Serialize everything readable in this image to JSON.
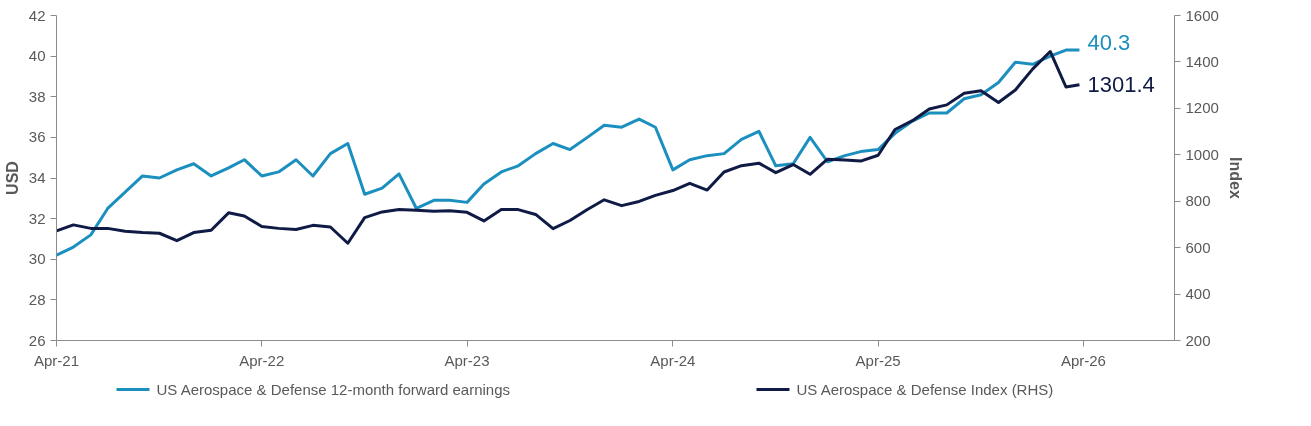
{
  "chart_data": {
    "type": "line",
    "xlabel": null,
    "ylabel": "USD",
    "y2label": "Index",
    "x": [
      "2021-04-01",
      "2021-05-01",
      "2021-06-01",
      "2021-07-01",
      "2021-08-01",
      "2021-09-01",
      "2021-10-01",
      "2021-11-01",
      "2021-12-01",
      "2022-01-01",
      "2022-02-01",
      "2022-03-01",
      "2022-04-01",
      "2022-05-01",
      "2022-06-01",
      "2022-07-01",
      "2022-08-01",
      "2022-09-01",
      "2022-10-01",
      "2022-11-01",
      "2022-12-01",
      "2023-01-01",
      "2023-02-01",
      "2023-03-01",
      "2023-04-01",
      "2023-05-01",
      "2023-06-01",
      "2023-07-01",
      "2023-08-01",
      "2023-09-01",
      "2023-10-01",
      "2023-11-01",
      "2023-12-01",
      "2024-01-01",
      "2024-02-01",
      "2024-03-01",
      "2024-04-01",
      "2024-05-01",
      "2024-06-01",
      "2024-07-01",
      "2024-08-01",
      "2024-09-01",
      "2024-10-01",
      "2024-11-01",
      "2024-12-01",
      "2025-01-01",
      "2025-02-01",
      "2025-03-01",
      "2025-04-01",
      "2025-05-01",
      "2025-06-01",
      "2025-07-01",
      "2025-08-01",
      "2025-09-01",
      "2025-10-01",
      "2025-11-01",
      "2025-12-01",
      "2026-01-01",
      "2026-02-01",
      "2026-03-01",
      "2026-03-25"
    ],
    "series": [
      {
        "name": "US Aerospace & Defense 12-month forward earnings",
        "color": "#1b8fbe",
        "values": [
          30.2,
          30.6,
          31.2,
          32.5,
          33.3,
          34.1,
          34.0,
          34.4,
          34.7,
          34.1,
          34.5,
          34.9,
          34.1,
          34.3,
          34.9,
          34.1,
          35.2,
          35.7,
          33.2,
          33.5,
          34.2,
          32.5,
          32.9,
          32.9,
          32.8,
          33.7,
          34.3,
          34.6,
          35.2,
          35.7,
          35.4,
          36.0,
          36.6,
          36.5,
          36.9,
          36.5,
          34.4,
          34.9,
          35.1,
          35.2,
          35.9,
          36.3,
          34.6,
          34.7,
          36.0,
          34.8,
          35.1,
          35.3,
          35.4,
          36.2,
          36.8,
          37.2,
          37.2,
          37.9,
          38.1,
          38.7,
          39.7,
          39.6,
          40.0,
          40.3,
          40.3
        ],
        "value_labels": [
          null,
          null,
          null,
          null,
          null,
          null,
          null,
          null,
          null,
          null,
          null,
          null,
          null,
          null,
          null,
          null,
          null,
          null,
          null,
          null,
          null,
          null,
          null,
          null,
          null,
          null,
          null,
          null,
          null,
          null,
          null,
          null,
          null,
          null,
          null,
          null,
          null,
          null,
          null,
          null,
          null,
          null,
          null,
          null,
          null,
          null,
          null,
          null,
          null,
          null,
          null,
          null,
          null,
          null,
          null,
          null,
          null,
          null,
          null,
          null,
          "40.3"
        ]
      },
      {
        "name": "US Aerospace & Defense Index (RHS)",
        "color": "#0f1a45",
        "axis": "y2",
        "values": [
          672,
          698,
          683,
          683,
          671,
          665,
          662,
          630,
          665,
          675,
          750,
          736,
          691,
          683,
          678,
          696,
          689,
          619,
          729,
          754,
          764,
          761,
          757,
          759,
          752,
          715,
          764,
          764,
          743,
          682,
          717,
          764,
          806,
          781,
          799,
          825,
          846,
          877,
          848,
          926,
          953,
          964,
          923,
          958,
          916,
          981,
          978,
          973,
          998,
          1109,
          1147,
          1197,
          1215,
          1265,
          1276,
          1225,
          1279,
          1370,
          1445,
          1292,
          1301.4
        ],
        "value_labels": [
          null,
          null,
          null,
          null,
          null,
          null,
          null,
          null,
          null,
          null,
          null,
          null,
          null,
          null,
          null,
          null,
          null,
          null,
          null,
          null,
          null,
          null,
          null,
          null,
          null,
          null,
          null,
          null,
          null,
          null,
          null,
          null,
          null,
          null,
          null,
          null,
          null,
          null,
          null,
          null,
          null,
          null,
          null,
          null,
          null,
          null,
          null,
          null,
          null,
          null,
          null,
          null,
          null,
          null,
          null,
          null,
          null,
          null,
          null,
          null,
          "1301.4"
        ]
      }
    ],
    "xlim": [
      "2021-04-01",
      "2026-09-10"
    ],
    "xticks": [
      {
        "value": "2021-04-01",
        "label": "Apr-21"
      },
      {
        "value": "2022-04-01",
        "label": "Apr-22"
      },
      {
        "value": "2023-04-01",
        "label": "Apr-23"
      },
      {
        "value": "2024-04-01",
        "label": "Apr-24"
      },
      {
        "value": "2025-04-01",
        "label": "Apr-25"
      },
      {
        "value": "2026-04-01",
        "label": "Apr-26"
      }
    ],
    "ylim": [
      26,
      42
    ],
    "yticks": [
      26,
      28,
      30,
      32,
      34,
      36,
      38,
      40,
      42
    ],
    "y2lim": [
      200,
      1600
    ],
    "y2ticks": [
      200,
      400,
      600,
      800,
      1000,
      1200,
      1400,
      1600
    ],
    "grid": false,
    "legend": "bottom",
    "marker": "none",
    "line_style": "solid"
  }
}
